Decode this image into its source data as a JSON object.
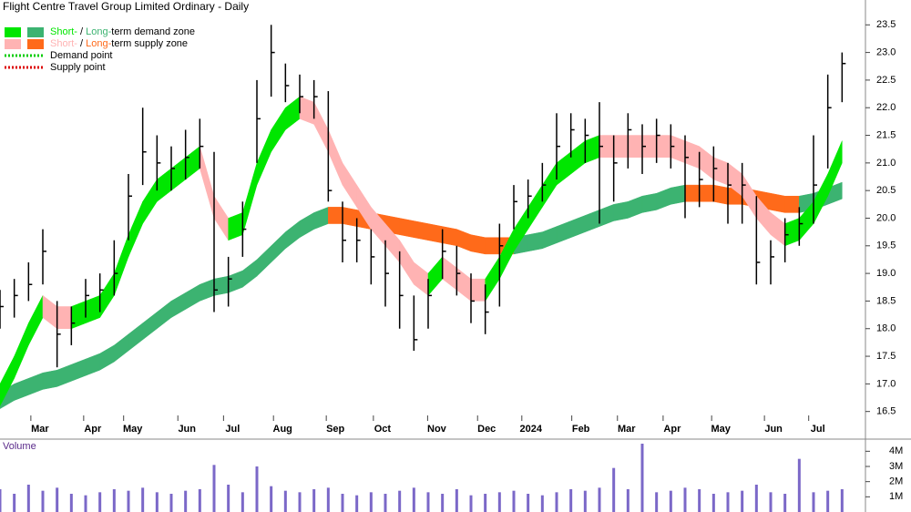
{
  "chart_data": {
    "type": "ohlc-zones",
    "title": "Flight Centre Travel Group Limited Ordinary - Daily",
    "volume_label": "Volume",
    "legend": [
      {
        "short": "Short-",
        "sep": " / ",
        "long": "Long-",
        "rest": "term demand zone"
      },
      {
        "short": "Short-",
        "sep": " / ",
        "long": "Long-",
        "rest": "term supply zone"
      },
      {
        "label": "Demand point"
      },
      {
        "label": "Supply point"
      }
    ],
    "colors": {
      "short_demand": "#00e600",
      "long_demand": "#3cb371",
      "short_supply": "#ffb3b3",
      "long_supply": "#ff6a1a",
      "demand_point": "#00cc00",
      "supply_point": "#dd0000",
      "price": "#000000",
      "volume": "#7b68c8"
    },
    "xlim": [
      0,
      60
    ],
    "xticks": [
      {
        "value": 2.8,
        "label": "Mar"
      },
      {
        "value": 6.5,
        "label": "Apr"
      },
      {
        "value": 9.3,
        "label": "May"
      },
      {
        "value": 13.1,
        "label": "Jun"
      },
      {
        "value": 16.3,
        "label": "Jul"
      },
      {
        "value": 19.8,
        "label": "Aug"
      },
      {
        "value": 23.5,
        "label": "Sep"
      },
      {
        "value": 26.8,
        "label": "Oct"
      },
      {
        "value": 30.6,
        "label": "Nov"
      },
      {
        "value": 34.1,
        "label": "Dec"
      },
      {
        "value": 37.2,
        "label": "2024"
      },
      {
        "value": 40.7,
        "label": "Feb"
      },
      {
        "value": 43.9,
        "label": "Mar"
      },
      {
        "value": 47.1,
        "label": "Apr"
      },
      {
        "value": 50.5,
        "label": "May"
      },
      {
        "value": 54.2,
        "label": "Jun"
      },
      {
        "value": 57.3,
        "label": "Jul"
      }
    ],
    "ylim": [
      16.0,
      23.95
    ],
    "yticks": [
      16.5,
      {
        "value": 17,
        "label": "17.0"
      },
      17.5,
      {
        "value": 18,
        "label": "18.0"
      },
      18.5,
      {
        "value": 19,
        "label": "19.0"
      },
      19.5,
      {
        "value": 20,
        "label": "20.0"
      },
      20.5,
      {
        "value": 21,
        "label": "21.0"
      },
      21.5,
      {
        "value": 22,
        "label": "22.0"
      },
      22.5,
      {
        "value": 23,
        "label": "23.0"
      },
      23.5
    ],
    "vol_ylim": [
      0,
      4800000
    ],
    "vol_yticks": [
      {
        "value": 1000000,
        "label": "1M"
      },
      {
        "value": 2000000,
        "label": "2M"
      },
      {
        "value": 3000000,
        "label": "3M"
      },
      {
        "value": 4000000,
        "label": "4M"
      }
    ],
    "x": [
      0,
      1,
      2,
      3,
      4,
      5,
      6,
      7,
      8,
      9,
      10,
      11,
      12,
      13,
      14,
      15,
      16,
      17,
      18,
      19,
      20,
      21,
      22,
      23,
      24,
      25,
      26,
      27,
      28,
      29,
      30,
      31,
      32,
      33,
      34,
      35,
      36,
      37,
      38,
      39,
      40,
      41,
      42,
      43,
      44,
      45,
      46,
      47,
      48,
      49,
      50,
      51,
      52,
      53,
      54,
      55,
      56,
      57,
      58,
      59
    ],
    "high": [
      18.7,
      18.9,
      19.2,
      19.8,
      18.5,
      18.4,
      18.9,
      19.0,
      19.6,
      20.8,
      22.0,
      21.5,
      21.3,
      21.6,
      21.8,
      21.2,
      19.3,
      20.3,
      22.5,
      23.5,
      22.8,
      22.6,
      22.5,
      22.3,
      20.3,
      20.0,
      19.8,
      19.6,
      19.4,
      18.6,
      18.9,
      19.8,
      19.5,
      19.0,
      18.8,
      19.9,
      20.6,
      20.7,
      21.0,
      21.9,
      21.9,
      21.8,
      22.1,
      21.5,
      21.9,
      21.7,
      21.8,
      21.7,
      21.5,
      21.2,
      21.3,
      21.0,
      21.0,
      20.4,
      19.6,
      20.0,
      20.2,
      21.5,
      22.6,
      23.0
    ],
    "low": [
      18.0,
      18.2,
      18.5,
      18.8,
      17.3,
      17.7,
      18.2,
      18.3,
      18.6,
      19.6,
      20.6,
      20.5,
      20.5,
      20.7,
      20.9,
      18.3,
      18.4,
      19.3,
      21.0,
      22.2,
      22.1,
      21.9,
      21.8,
      20.3,
      19.2,
      19.2,
      18.8,
      18.4,
      18.0,
      17.6,
      18.0,
      18.9,
      18.6,
      18.1,
      17.9,
      18.4,
      19.8,
      20.0,
      20.3,
      20.7,
      21.1,
      21.0,
      19.9,
      20.3,
      20.9,
      20.8,
      21.0,
      20.9,
      20.0,
      20.2,
      20.3,
      19.9,
      19.9,
      18.8,
      18.8,
      19.2,
      19.5,
      19.9,
      20.9,
      22.1
    ],
    "close": [
      18.4,
      18.6,
      18.8,
      19.4,
      17.9,
      18.1,
      18.6,
      18.7,
      19.0,
      20.4,
      21.2,
      21.0,
      20.9,
      21.1,
      21.3,
      18.7,
      18.9,
      19.8,
      21.8,
      23.0,
      22.4,
      22.2,
      22.2,
      20.5,
      19.6,
      19.6,
      19.3,
      19.0,
      18.6,
      17.8,
      18.6,
      19.4,
      19.0,
      18.5,
      18.3,
      19.5,
      20.3,
      20.4,
      20.6,
      21.3,
      21.6,
      21.5,
      21.3,
      21.0,
      21.6,
      21.3,
      21.5,
      21.3,
      21.1,
      20.7,
      20.9,
      20.6,
      20.6,
      19.2,
      19.3,
      19.7,
      19.9,
      20.6,
      22.0,
      22.8
    ],
    "short_zone_low": [
      16.6,
      17.1,
      17.7,
      18.2,
      18.0,
      18.0,
      18.1,
      18.2,
      18.6,
      19.3,
      19.9,
      20.3,
      20.5,
      20.7,
      20.9,
      20.0,
      19.6,
      19.7,
      20.6,
      21.2,
      21.6,
      21.8,
      21.7,
      21.2,
      20.6,
      20.2,
      19.8,
      19.5,
      19.2,
      18.8,
      18.6,
      18.9,
      18.7,
      18.5,
      18.5,
      18.9,
      19.4,
      19.8,
      20.2,
      20.6,
      20.8,
      21.0,
      21.1,
      21.1,
      21.1,
      21.1,
      21.1,
      21.1,
      21.0,
      20.9,
      20.7,
      20.6,
      20.4,
      20.0,
      19.7,
      19.5,
      19.6,
      19.9,
      20.4,
      21.0
    ],
    "short_zone_high": [
      17.0,
      17.5,
      18.1,
      18.6,
      18.4,
      18.4,
      18.5,
      18.6,
      19.0,
      19.7,
      20.3,
      20.7,
      20.9,
      21.1,
      21.3,
      20.4,
      20.0,
      20.1,
      21.0,
      21.6,
      22.0,
      22.2,
      22.1,
      21.6,
      21.0,
      20.6,
      20.2,
      19.9,
      19.6,
      19.2,
      19.0,
      19.3,
      19.1,
      18.9,
      18.9,
      19.3,
      19.8,
      20.2,
      20.6,
      21.0,
      21.2,
      21.4,
      21.5,
      21.5,
      21.5,
      21.5,
      21.5,
      21.5,
      21.4,
      21.3,
      21.1,
      21.0,
      20.8,
      20.4,
      20.1,
      19.9,
      20.0,
      20.3,
      20.8,
      21.4
    ],
    "long_zone_low": [
      16.55,
      16.7,
      16.8,
      16.9,
      16.95,
      17.05,
      17.15,
      17.25,
      17.4,
      17.6,
      17.8,
      18.0,
      18.2,
      18.35,
      18.5,
      18.6,
      18.65,
      18.75,
      18.95,
      19.2,
      19.45,
      19.65,
      19.8,
      19.9,
      19.9,
      19.85,
      19.8,
      19.75,
      19.7,
      19.65,
      19.6,
      19.55,
      19.5,
      19.4,
      19.35,
      19.35,
      19.35,
      19.4,
      19.45,
      19.55,
      19.65,
      19.75,
      19.85,
      19.95,
      20.0,
      20.1,
      20.15,
      20.25,
      20.3,
      20.3,
      20.3,
      20.25,
      20.25,
      20.2,
      20.15,
      20.1,
      20.1,
      20.15,
      20.25,
      20.35
    ],
    "long_zone_high": [
      16.85,
      17.0,
      17.1,
      17.2,
      17.25,
      17.35,
      17.45,
      17.55,
      17.7,
      17.9,
      18.1,
      18.3,
      18.5,
      18.65,
      18.8,
      18.9,
      18.95,
      19.05,
      19.25,
      19.5,
      19.75,
      19.95,
      20.1,
      20.2,
      20.2,
      20.15,
      20.1,
      20.05,
      20.0,
      19.95,
      19.9,
      19.85,
      19.8,
      19.7,
      19.65,
      19.65,
      19.65,
      19.7,
      19.75,
      19.85,
      19.95,
      20.05,
      20.15,
      20.25,
      20.3,
      20.4,
      20.45,
      20.55,
      20.6,
      20.6,
      20.6,
      20.55,
      20.55,
      20.5,
      20.45,
      20.4,
      20.4,
      20.45,
      20.55,
      20.65
    ],
    "volume": [
      1500000,
      1200000,
      1800000,
      1400000,
      1600000,
      1200000,
      1100000,
      1300000,
      1500000,
      1400000,
      1600000,
      1300000,
      1200000,
      1400000,
      1500000,
      3100000,
      1800000,
      1300000,
      3000000,
      1700000,
      1400000,
      1300000,
      1500000,
      1600000,
      1200000,
      1100000,
      1300000,
      1200000,
      1400000,
      1600000,
      1300000,
      1200000,
      1500000,
      1100000,
      1200000,
      1300000,
      1400000,
      1200000,
      1100000,
      1300000,
      1500000,
      1400000,
      1600000,
      2900000,
      1500000,
      4500000,
      1300000,
      1400000,
      1600000,
      1500000,
      1200000,
      1300000,
      1400000,
      1800000,
      1300000,
      1200000,
      3500000,
      1300000,
      1400000,
      1500000
    ]
  }
}
